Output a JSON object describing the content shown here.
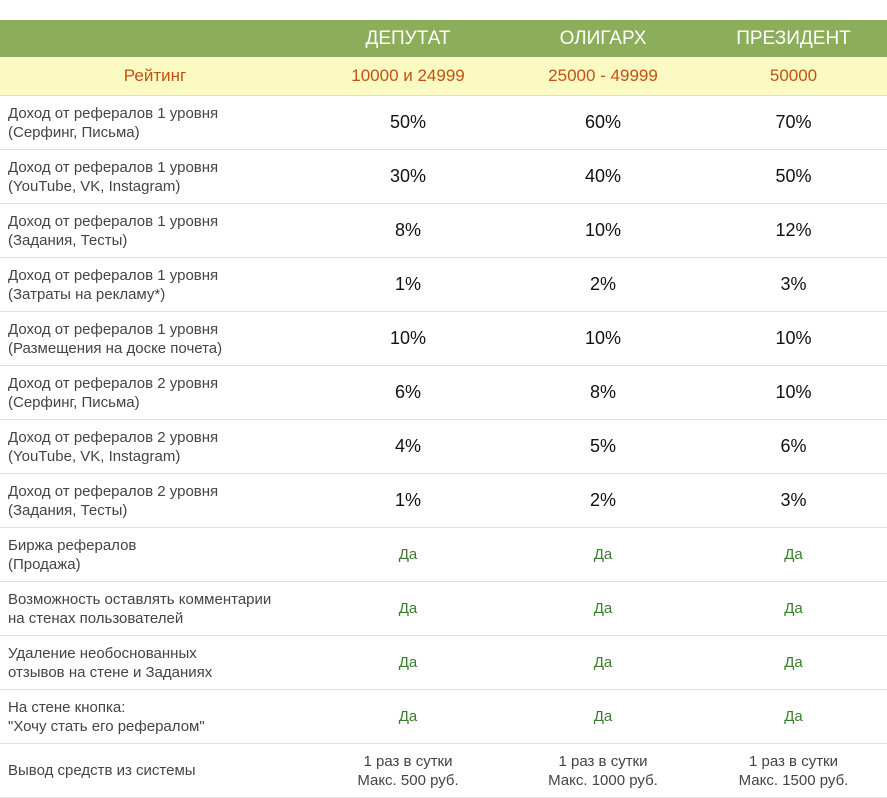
{
  "header": {
    "columns": [
      "ДЕПУТАТ",
      "ОЛИГАРХ",
      "ПРЕЗИДЕНТ"
    ]
  },
  "rating": {
    "label": "Рейтинг",
    "values": [
      "10000 и 24999",
      "25000 - 49999",
      "50000"
    ]
  },
  "rows": [
    {
      "label": [
        "Доход от рефералов 1 уровня",
        "(Серфинг, Письма)"
      ],
      "cells": [
        "50%",
        "60%",
        "70%"
      ]
    },
    {
      "label": [
        "Доход от рефералов 1 уровня",
        "(YouTube, VK, Instagram)"
      ],
      "cells": [
        "30%",
        "40%",
        "50%"
      ]
    },
    {
      "label": [
        "Доход от рефералов 1 уровня",
        "(Задания, Тесты)"
      ],
      "cells": [
        "8%",
        "10%",
        "12%"
      ]
    },
    {
      "label": [
        "Доход от рефералов 1 уровня",
        "(Затраты на рекламу*)"
      ],
      "cells": [
        "1%",
        "2%",
        "3%"
      ]
    },
    {
      "label": [
        "Доход от рефералов 1 уровня",
        "(Размещения на доске почета)"
      ],
      "cells": [
        "10%",
        "10%",
        "10%"
      ]
    },
    {
      "label": [
        "Доход от рефералов 2 уровня",
        "(Серфинг, Письма)"
      ],
      "cells": [
        "6%",
        "8%",
        "10%"
      ]
    },
    {
      "label": [
        "Доход от рефералов 2 уровня",
        "(YouTube, VK, Instagram)"
      ],
      "cells": [
        "4%",
        "5%",
        "6%"
      ]
    },
    {
      "label": [
        "Доход от рефералов 2 уровня",
        "(Задания, Тесты)"
      ],
      "cells": [
        "1%",
        "2%",
        "3%"
      ]
    },
    {
      "label": [
        "Биржа рефералов",
        "(Продажа)"
      ],
      "cells": [
        "Да",
        "Да",
        "Да"
      ]
    },
    {
      "label": [
        "Возможность оставлять комментарии",
        "на стенах пользователей"
      ],
      "cells": [
        "Да",
        "Да",
        "Да"
      ]
    },
    {
      "label": [
        "Удаление необоснованных",
        "отзывов на стене и Заданиях"
      ],
      "cells": [
        "Да",
        "Да",
        "Да"
      ]
    },
    {
      "label": [
        "На стене кнопка:",
        "\"Хочу стать его рефералом\""
      ],
      "cells": [
        "Да",
        "Да",
        "Да"
      ]
    },
    {
      "label": [
        "Вывод средств из системы"
      ],
      "cells": [
        [
          "1 раз в сутки",
          "Макс. 500 руб."
        ],
        [
          "1 раз в сутки",
          "Макс. 1000 руб."
        ],
        [
          "1 раз в сутки",
          "Макс. 1500 руб."
        ]
      ]
    }
  ]
}
